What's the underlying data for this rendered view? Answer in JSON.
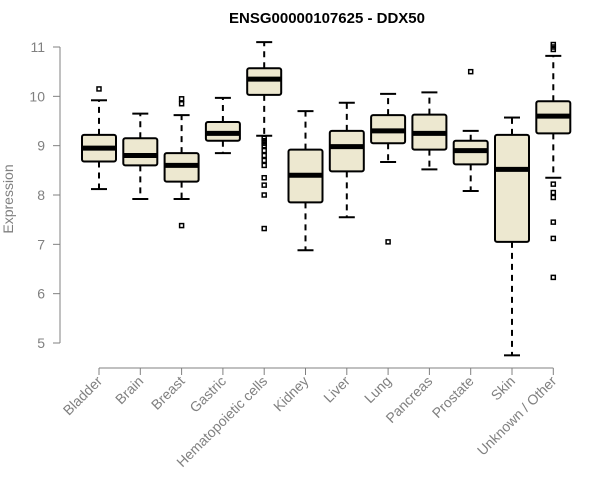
{
  "chart_data": {
    "type": "box",
    "title": "ENSG00000107625 - DDX50",
    "xlabel": "",
    "ylabel": "Expression",
    "ylim": [
      4.7,
      11.15
    ],
    "yticks": [
      5,
      6,
      7,
      8,
      9,
      10,
      11
    ],
    "grid": false,
    "box_color": "#EDE8D0",
    "categories": [
      "Bladder",
      "Brain",
      "Breast",
      "Gastric",
      "Hematopoietic cells",
      "Kidney",
      "Liver",
      "Lung",
      "Pancreas",
      "Prostate",
      "Skin",
      "Unknown / Other"
    ],
    "boxes": [
      {
        "whislo": 8.12,
        "q1": 8.68,
        "med": 8.95,
        "q3": 9.22,
        "whishi": 9.92,
        "fliers": [
          10.15
        ]
      },
      {
        "whislo": 7.92,
        "q1": 8.6,
        "med": 8.8,
        "q3": 9.15,
        "whishi": 9.65,
        "fliers": []
      },
      {
        "whislo": 7.92,
        "q1": 8.27,
        "med": 8.6,
        "q3": 8.85,
        "whishi": 9.62,
        "fliers": [
          7.38,
          9.85,
          9.95
        ]
      },
      {
        "whislo": 8.85,
        "q1": 9.1,
        "med": 9.25,
        "q3": 9.48,
        "whishi": 9.97,
        "fliers": []
      },
      {
        "whislo": 9.2,
        "q1": 10.03,
        "med": 10.35,
        "q3": 10.57,
        "whishi": 11.1,
        "fliers": [
          7.32,
          8.0,
          8.2,
          8.35,
          8.6,
          8.7,
          8.8,
          8.9,
          9.0,
          9.05,
          9.1,
          9.15
        ]
      },
      {
        "whislo": 6.88,
        "q1": 7.85,
        "med": 8.4,
        "q3": 8.92,
        "whishi": 9.7,
        "fliers": []
      },
      {
        "whislo": 7.55,
        "q1": 8.48,
        "med": 8.98,
        "q3": 9.3,
        "whishi": 9.87,
        "fliers": []
      },
      {
        "whislo": 8.67,
        "q1": 9.05,
        "med": 9.3,
        "q3": 9.62,
        "whishi": 10.05,
        "fliers": [
          7.05
        ]
      },
      {
        "whislo": 8.52,
        "q1": 8.92,
        "med": 9.25,
        "q3": 9.63,
        "whishi": 10.08,
        "fliers": []
      },
      {
        "whislo": 8.08,
        "q1": 8.62,
        "med": 8.9,
        "q3": 9.1,
        "whishi": 9.3,
        "fliers": [
          10.5
        ]
      },
      {
        "whislo": 4.75,
        "q1": 7.05,
        "med": 8.52,
        "q3": 9.22,
        "whishi": 9.57,
        "fliers": []
      },
      {
        "whislo": 8.35,
        "q1": 9.25,
        "med": 9.6,
        "q3": 9.9,
        "whishi": 10.82,
        "fliers": [
          6.33,
          7.12,
          7.45,
          7.95,
          8.05,
          8.22,
          10.95,
          11.0,
          11.05
        ]
      }
    ]
  }
}
